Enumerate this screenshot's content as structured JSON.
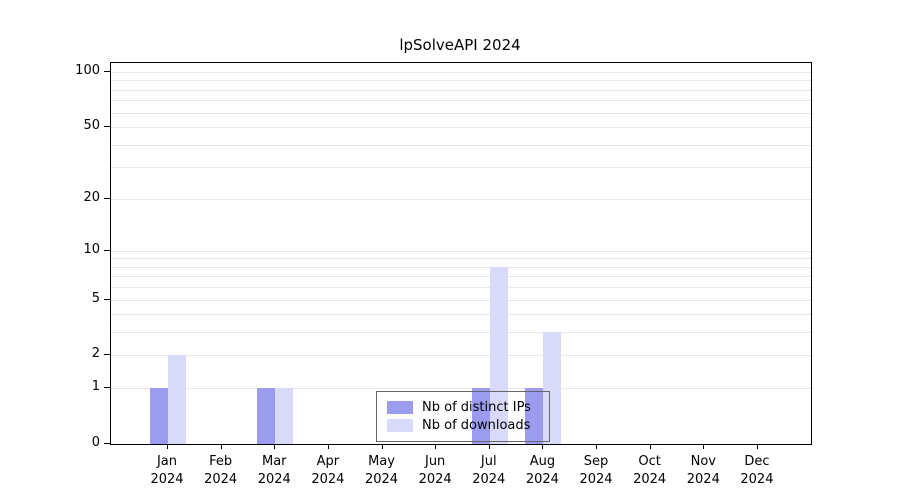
{
  "chart_data": {
    "type": "bar",
    "title": "lpSolveAPI 2024",
    "scale": "log1p",
    "categories": [
      {
        "month": "Jan",
        "year": "2024"
      },
      {
        "month": "Feb",
        "year": "2024"
      },
      {
        "month": "Mar",
        "year": "2024"
      },
      {
        "month": "Apr",
        "year": "2024"
      },
      {
        "month": "May",
        "year": "2024"
      },
      {
        "month": "Jun",
        "year": "2024"
      },
      {
        "month": "Jul",
        "year": "2024"
      },
      {
        "month": "Aug",
        "year": "2024"
      },
      {
        "month": "Sep",
        "year": "2024"
      },
      {
        "month": "Oct",
        "year": "2024"
      },
      {
        "month": "Nov",
        "year": "2024"
      },
      {
        "month": "Dec",
        "year": "2024"
      }
    ],
    "series": [
      {
        "name": "Nb of distinct IPs",
        "color": "#9b9bef",
        "values": [
          1,
          0,
          1,
          0,
          0,
          0,
          1,
          1,
          0,
          0,
          0,
          0
        ]
      },
      {
        "name": "Nb of downloads",
        "color": "#d9d9fa",
        "values": [
          2,
          0,
          1,
          0,
          0,
          0,
          8,
          3,
          0,
          0,
          0,
          0
        ]
      }
    ],
    "y_ticks": [
      0,
      1,
      2,
      5,
      10,
      20,
      50,
      100
    ],
    "gridline_values": [
      1,
      2,
      3,
      4,
      5,
      6,
      7,
      8,
      9,
      10,
      20,
      30,
      40,
      50,
      60,
      70,
      80,
      90,
      100
    ],
    "ylim": [
      0,
      110
    ],
    "legend_position": "bottom-center"
  }
}
